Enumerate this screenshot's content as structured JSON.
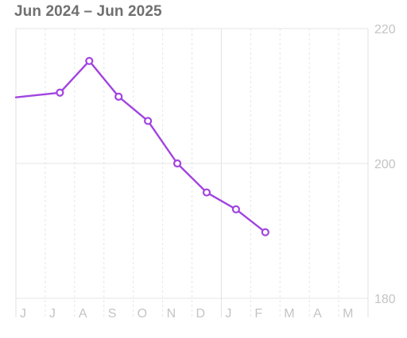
{
  "header": {
    "date_range": "Jun 2024 – Jun 2025"
  },
  "chart_data": {
    "type": "line",
    "x": [
      "Jun 2024",
      "Jul 2024",
      "Aug 2024",
      "Sep 2024",
      "Oct 2024",
      "Nov 2024",
      "Dec 2024",
      "Jan 2025",
      "Feb 2025"
    ],
    "month_ticks": [
      "J",
      "J",
      "A",
      "S",
      "O",
      "N",
      "D",
      "J",
      "F",
      "M",
      "A",
      "M"
    ],
    "y_ticks": [
      220,
      200,
      180
    ],
    "series": [
      {
        "values": [
          209.8,
          210.5,
          215.2,
          209.9,
          206.3,
          200.0,
          195.7,
          193.2,
          189.8
        ],
        "color": "#a144e0",
        "markers": [
          false,
          true,
          true,
          true,
          true,
          true,
          true,
          true,
          true
        ]
      }
    ],
    "ylim": [
      180,
      220
    ],
    "grid": true,
    "y_axis_side": "right"
  }
}
